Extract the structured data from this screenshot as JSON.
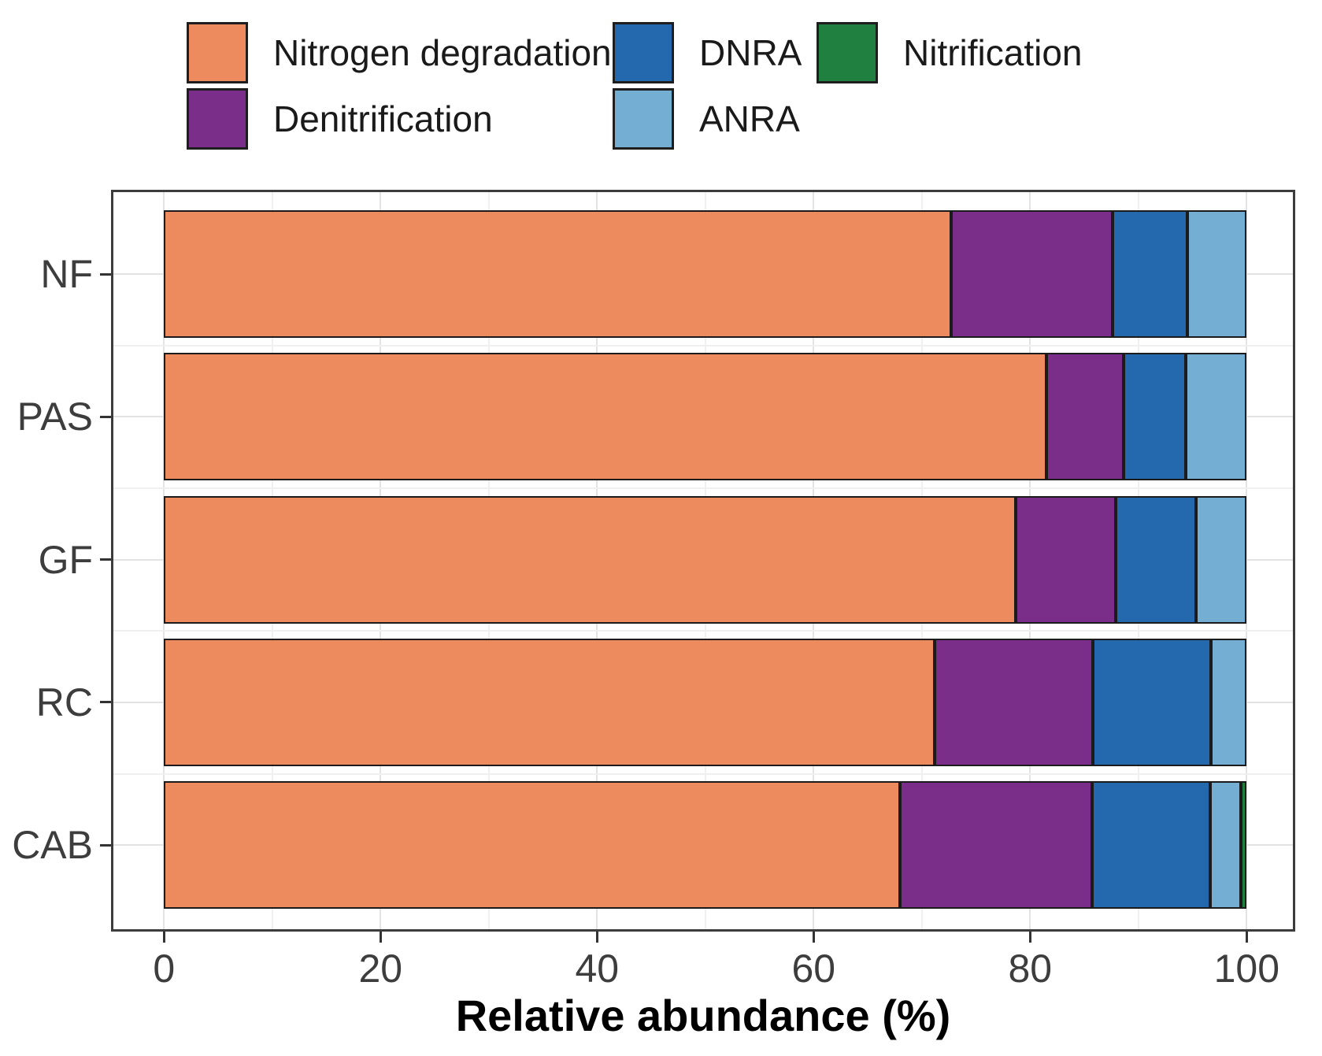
{
  "chart_data": {
    "type": "bar",
    "orientation": "horizontal",
    "stacked": true,
    "title": "",
    "xlabel": "Relative abundance (%)",
    "ylabel": "",
    "categories": [
      "NF",
      "PAS",
      "GF",
      "RC",
      "CAB"
    ],
    "series": [
      {
        "name": "Nitrogen degradation",
        "color": "#ED8B5F",
        "values": [
          72.7,
          81.5,
          78.7,
          71.2,
          68.0
        ]
      },
      {
        "name": "Denitrification",
        "color": "#7B2D8A",
        "values": [
          14.9,
          7.1,
          9.2,
          14.6,
          17.7
        ]
      },
      {
        "name": "DNRA",
        "color": "#2468AE",
        "values": [
          6.9,
          5.8,
          7.4,
          10.9,
          10.9
        ]
      },
      {
        "name": "ANRA",
        "color": "#74AFD3",
        "values": [
          5.5,
          5.6,
          4.7,
          3.3,
          2.9
        ]
      },
      {
        "name": "Nitrification",
        "color": "#1F8040",
        "values": [
          0,
          0,
          0,
          0,
          0.5
        ]
      }
    ],
    "xlim": [
      0,
      100
    ],
    "x_ticks": [
      0,
      20,
      40,
      60,
      80,
      100
    ],
    "x_minor_ticks": [
      10,
      30,
      50,
      70,
      90
    ],
    "grid": true,
    "legend_position": "top",
    "colors": {
      "segment_border": "#1b1b1b",
      "panel_border": "#3c3c3c",
      "grid_major": "#e3e3e3",
      "grid_minor": "#f0f0f0",
      "tick_label": "#3d3d3d",
      "legend_label": "#1a1a1a",
      "axis_title": "#000000"
    }
  }
}
